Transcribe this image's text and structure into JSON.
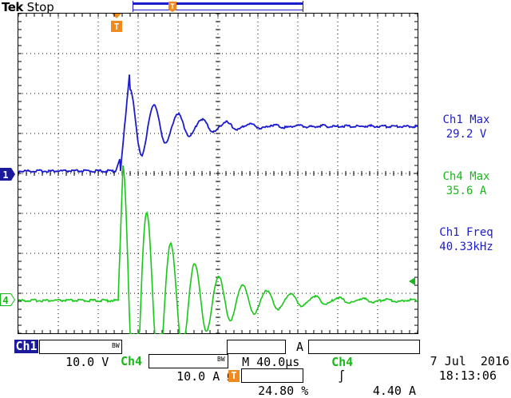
{
  "header": {
    "brand": "Tek",
    "status": "Stop",
    "trigger_marker": "T"
  },
  "colors": {
    "ch1": "#1c1ccc",
    "ch4": "#18c818",
    "trigger": "#f08a1e",
    "grid": "#000000"
  },
  "channel_markers": {
    "ch1": "1",
    "ch4": "4"
  },
  "measurements": [
    {
      "label": "Ch1 Max",
      "value": "29.2 V"
    },
    {
      "label": "Ch4 Max",
      "value": "35.6 A"
    },
    {
      "label": "Ch1 Freq",
      "value": "40.33kHz"
    }
  ],
  "status_bar": {
    "ch1_name": "Ch1",
    "ch1_scale": "10.0 V",
    "ch1_bw": "BW",
    "timebase": "M 40.0µs",
    "trig_mode": "A",
    "trig_source": "Ch4",
    "trig_slope": "∫",
    "trig_level": "4.40 A",
    "ch4_name": "Ch4",
    "ch4_scale": "10.0 A Ω",
    "ch4_bw": "BW",
    "trig_position": "24.80 %",
    "date": "7 Jul  2016",
    "time": "18:13:06"
  }
}
